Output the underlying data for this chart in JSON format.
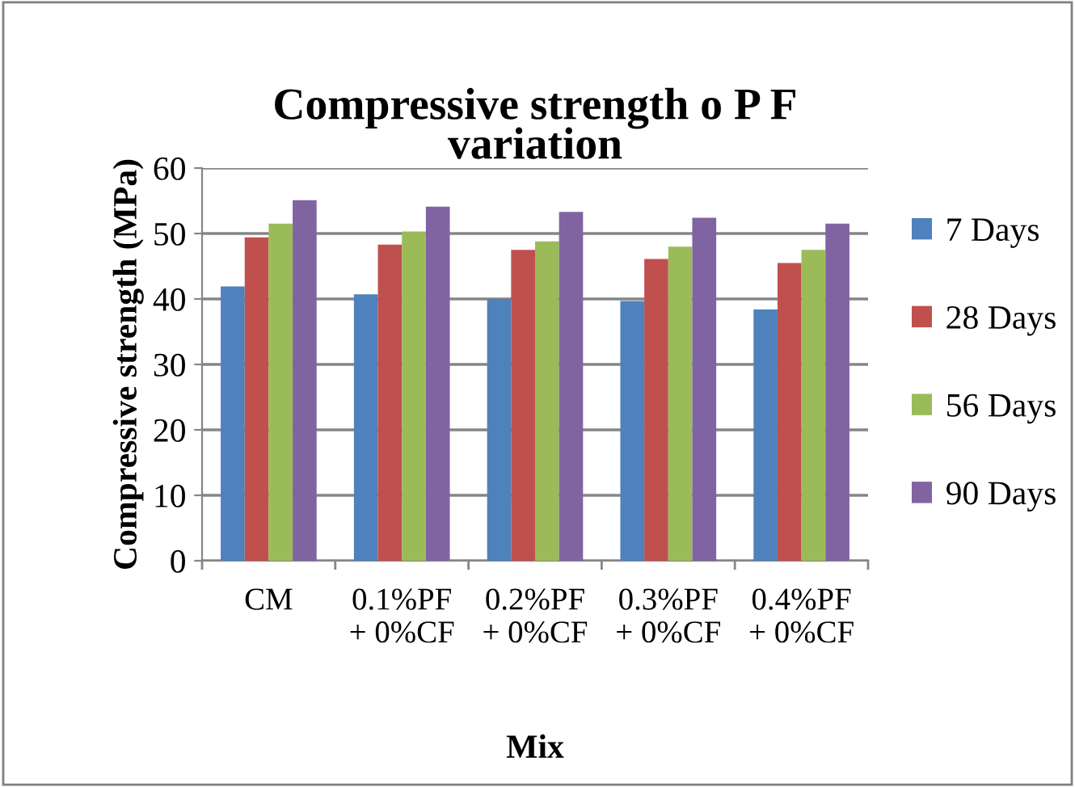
{
  "chart_data": {
    "type": "bar",
    "title": "Compressive strength o P F\nvariation",
    "xlabel": "Mix",
    "ylabel": "Compressive strength (MPa)",
    "categories": [
      "CM",
      "0.1%PF\n+ 0%CF",
      "0.2%PF\n+ 0%CF",
      "0.3%PF\n+ 0%CF",
      "0.4%PF\n+ 0%CF"
    ],
    "series": [
      {
        "name": "7 Days",
        "color": "#4f81bd",
        "values": [
          41.9,
          40.7,
          40.0,
          39.7,
          38.4
        ]
      },
      {
        "name": "28 Days",
        "color": "#c0504d",
        "values": [
          49.4,
          48.3,
          47.5,
          46.1,
          45.5
        ]
      },
      {
        "name": "56 Days",
        "color": "#9bbb59",
        "values": [
          51.5,
          50.3,
          48.8,
          48.0,
          47.5
        ]
      },
      {
        "name": "90 Days",
        "color": "#8064a2",
        "values": [
          55.1,
          54.1,
          53.3,
          52.4,
          51.5
        ]
      }
    ],
    "ylim": [
      0,
      60
    ],
    "yticks": [
      0,
      10,
      20,
      30,
      40,
      50,
      60
    ],
    "grid": "y",
    "legend": "right"
  }
}
